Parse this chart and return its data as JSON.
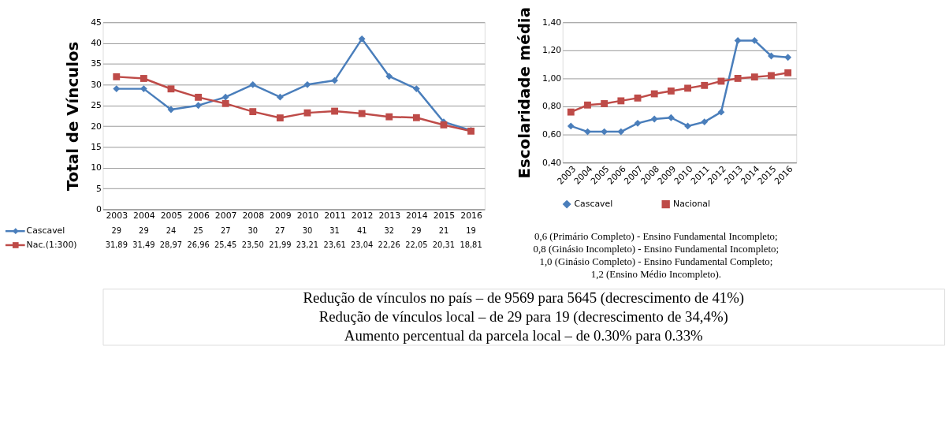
{
  "chart_data": [
    {
      "type": "line",
      "ylabel": "Total de Vínculos",
      "categories": [
        "2003",
        "2004",
        "2005",
        "2006",
        "2007",
        "2008",
        "2009",
        "2010",
        "2011",
        "2012",
        "2013",
        "2014",
        "2015",
        "2016"
      ],
      "series": [
        {
          "name": "Cascavel",
          "color": "#4a7ebb",
          "marker": "diamond",
          "values": [
            29,
            29,
            24,
            25,
            27,
            30,
            27,
            30,
            31,
            41,
            32,
            29,
            21,
            19
          ],
          "value_labels": [
            "29",
            "29",
            "24",
            "25",
            "27",
            "30",
            "27",
            "30",
            "31",
            "41",
            "32",
            "29",
            "21",
            "19"
          ]
        },
        {
          "name": "Nac.(1:300)",
          "color": "#be4b48",
          "marker": "square",
          "values": [
            31.89,
            31.49,
            28.97,
            26.96,
            25.45,
            23.5,
            21.99,
            23.21,
            23.61,
            23.04,
            22.26,
            22.05,
            20.31,
            18.81
          ],
          "value_labels": [
            "31,89",
            "31,49",
            "28,97",
            "26,96",
            "25,45",
            "23,50",
            "21,99",
            "23,21",
            "23,61",
            "23,04",
            "22,26",
            "22,05",
            "20,31",
            "18,81"
          ]
        }
      ],
      "ylim": [
        0,
        45
      ],
      "yticks": [
        0,
        5,
        10,
        15,
        20,
        25,
        30,
        35,
        40,
        45
      ],
      "grid": "y",
      "legend": "bottom",
      "annotations": [
        "Redução de vínculos no país – de 9569 para 5645 (decrescimento de 41%)",
        "Redução de vínculos local – de 29 para 19 (decrescimento de 34,4%)",
        "Aumento percentual da parcela local – de 0.30% para 0.33%"
      ]
    },
    {
      "type": "line",
      "ylabel": "Escolaridade média",
      "categories": [
        "2003",
        "2004",
        "2005",
        "2006",
        "2007",
        "2008",
        "2009",
        "2010",
        "2011",
        "2012",
        "2013",
        "2014",
        "2015",
        "2016"
      ],
      "series": [
        {
          "name": "Cascavel",
          "color": "#4a7ebb",
          "marker": "diamond",
          "values": [
            0.66,
            0.62,
            0.62,
            0.62,
            0.68,
            0.71,
            0.72,
            0.66,
            0.69,
            0.76,
            1.27,
            1.27,
            1.16,
            1.15
          ]
        },
        {
          "name": "Nacional",
          "color": "#be4b48",
          "marker": "square",
          "values": [
            0.76,
            0.81,
            0.82,
            0.84,
            0.86,
            0.89,
            0.91,
            0.93,
            0.95,
            0.98,
            1.0,
            1.01,
            1.02,
            1.04
          ]
        }
      ],
      "ylim": [
        0.4,
        1.4
      ],
      "yticks": [
        {
          "value": 0.4,
          "label": "0,40"
        },
        {
          "value": 0.6,
          "label": "0,60"
        },
        {
          "value": 0.8,
          "label": "0,80"
        },
        {
          "value": 1.0,
          "label": "1,00"
        },
        {
          "value": 1.2,
          "label": "1,20"
        },
        {
          "value": 1.4,
          "label": "1,40"
        }
      ],
      "grid": "y",
      "legend": "bottom",
      "annotations": [
        "0,6 (Primário Completo) - Ensino Fundamental Incompleto;",
        "0,8 (Ginásio Incompleto) - Ensino Fundamental Incompleto;",
        "1,0 (Ginásio Completo) - Ensino Fundamental Completo;",
        "1,2 (Ensino Médio Incompleto)."
      ]
    }
  ]
}
